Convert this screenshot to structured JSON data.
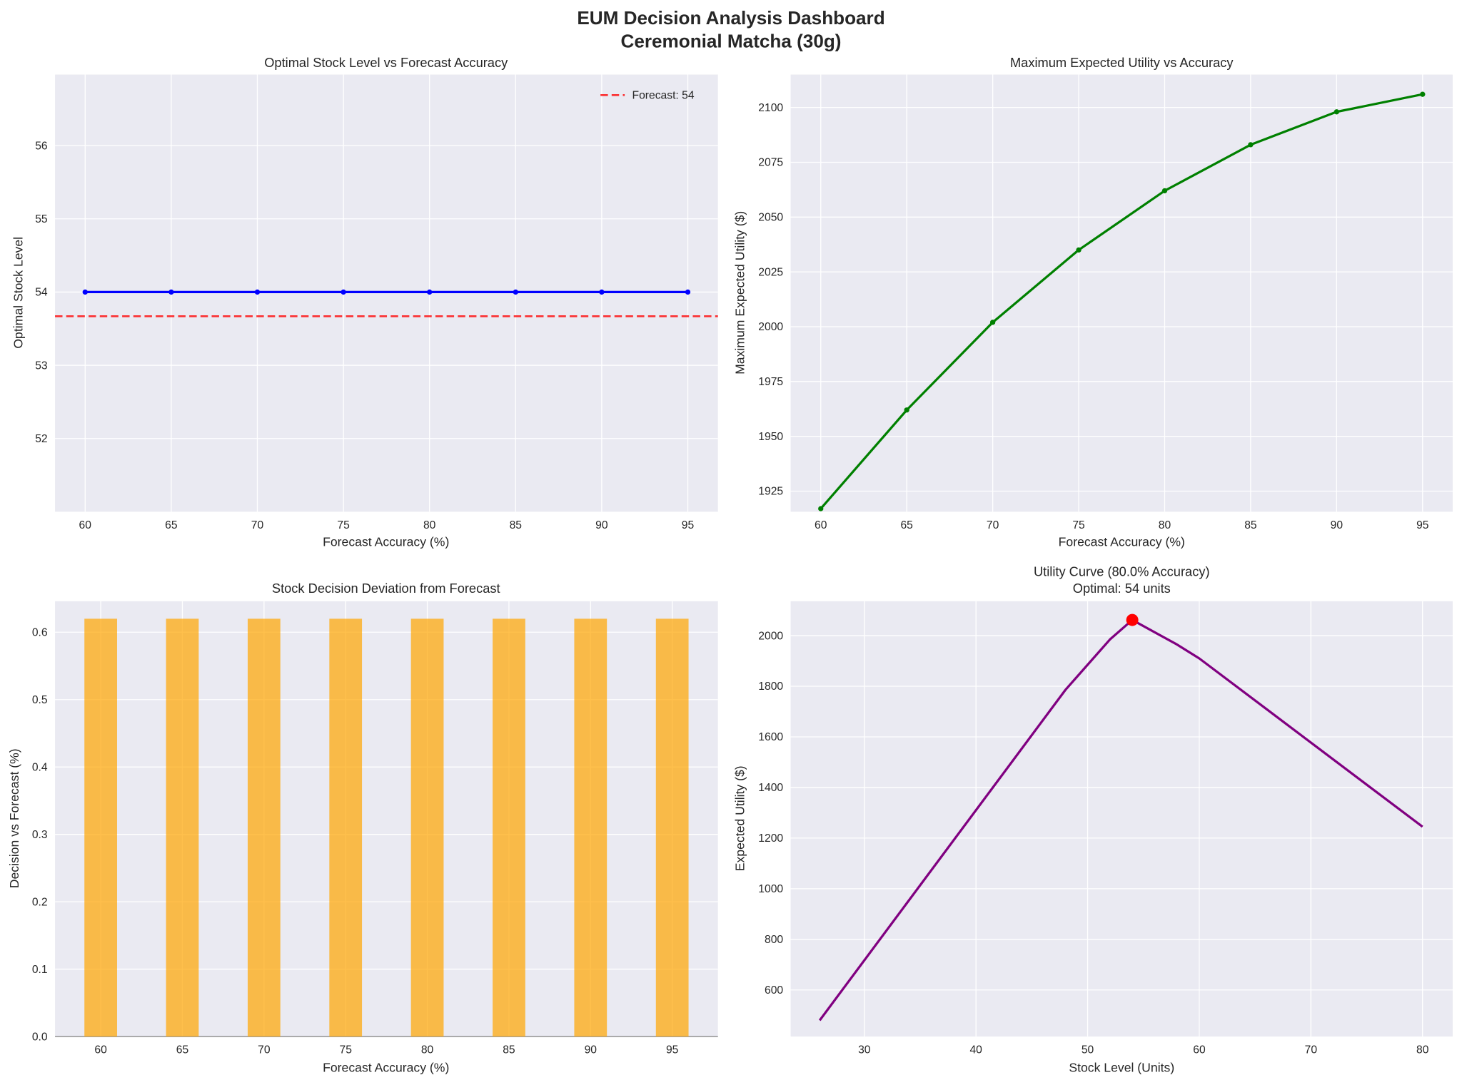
{
  "suptitle": {
    "line1": "EUM Decision Analysis Dashboard",
    "line2": "Ceremonial Matcha (30g)"
  },
  "chart_data": [
    {
      "type": "line",
      "title": "Optimal Stock Level vs Forecast Accuracy",
      "xlabel": "Forecast Accuracy (%)",
      "ylabel": "Optimal Stock Level",
      "x": [
        60,
        65,
        70,
        75,
        80,
        85,
        90,
        95
      ],
      "series": [
        {
          "values": [
            54,
            54,
            54,
            54,
            54,
            54,
            54,
            54
          ],
          "color": "#0000ff",
          "markers": true
        }
      ],
      "hline": {
        "value": 53.67,
        "label": "Forecast: 54",
        "color": "#ff0000",
        "style": "dashed"
      },
      "xticks": [
        60,
        65,
        70,
        75,
        80,
        85,
        90,
        95
      ],
      "yticks": [
        52,
        53,
        54,
        55,
        56
      ],
      "xlim": [
        58.25,
        96.75
      ],
      "ylim": [
        51.0,
        56.97
      ],
      "grid": true,
      "legend": "top-right"
    },
    {
      "type": "line",
      "title": "Maximum Expected Utility vs Accuracy",
      "xlabel": "Forecast Accuracy (%)",
      "ylabel": "Maximum Expected Utility ($)",
      "x": [
        60,
        65,
        70,
        75,
        80,
        85,
        90,
        95
      ],
      "series": [
        {
          "values": [
            1917,
            1962,
            2002,
            2035,
            2062,
            2083,
            2098,
            2106
          ],
          "color": "#008000",
          "markers": true
        }
      ],
      "xticks": [
        60,
        65,
        70,
        75,
        80,
        85,
        90,
        95
      ],
      "yticks": [
        1925,
        1950,
        1975,
        2000,
        2025,
        2050,
        2075,
        2100
      ],
      "xlim": [
        58.25,
        96.75
      ],
      "ylim": [
        1915.6,
        2115
      ],
      "grid": true
    },
    {
      "type": "bar",
      "title": "Stock Decision Deviation from Forecast",
      "xlabel": "Forecast Accuracy (%)",
      "ylabel": "Decision vs Forecast (%)",
      "categories": [
        60,
        65,
        70,
        75,
        80,
        85,
        90,
        95
      ],
      "values": [
        0.62,
        0.62,
        0.62,
        0.62,
        0.62,
        0.62,
        0.62,
        0.62
      ],
      "bar_width": 2,
      "color": "#ffa500",
      "xticks": [
        60,
        65,
        70,
        75,
        80,
        85,
        90,
        95
      ],
      "yticks": [
        0.0,
        0.1,
        0.2,
        0.3,
        0.4,
        0.5,
        0.6
      ],
      "xlim": [
        57.2,
        97.8
      ],
      "ylim": [
        0,
        0.646
      ],
      "grid": true
    },
    {
      "type": "line",
      "title": "Utility Curve (80.0% Accuracy)",
      "subtitle": "Optimal: 54 units",
      "xlabel": "Stock Level (Units)",
      "ylabel": "Expected Utility ($)",
      "x": [
        26,
        48,
        52,
        54,
        58,
        60,
        80
      ],
      "series": [
        {
          "values": [
            480,
            1785,
            1985,
            2062,
            1965,
            1910,
            1245
          ],
          "color": "#800080",
          "markers": false
        }
      ],
      "optimal_point": {
        "x": 54,
        "y": 2062,
        "color": "#ff0000"
      },
      "xticks": [
        30,
        40,
        50,
        60,
        70,
        80
      ],
      "yticks": [
        600,
        800,
        1000,
        1200,
        1400,
        1600,
        1800,
        2000
      ],
      "xlim": [
        23.4,
        82.7
      ],
      "ylim": [
        416,
        2136
      ],
      "grid": true
    }
  ]
}
